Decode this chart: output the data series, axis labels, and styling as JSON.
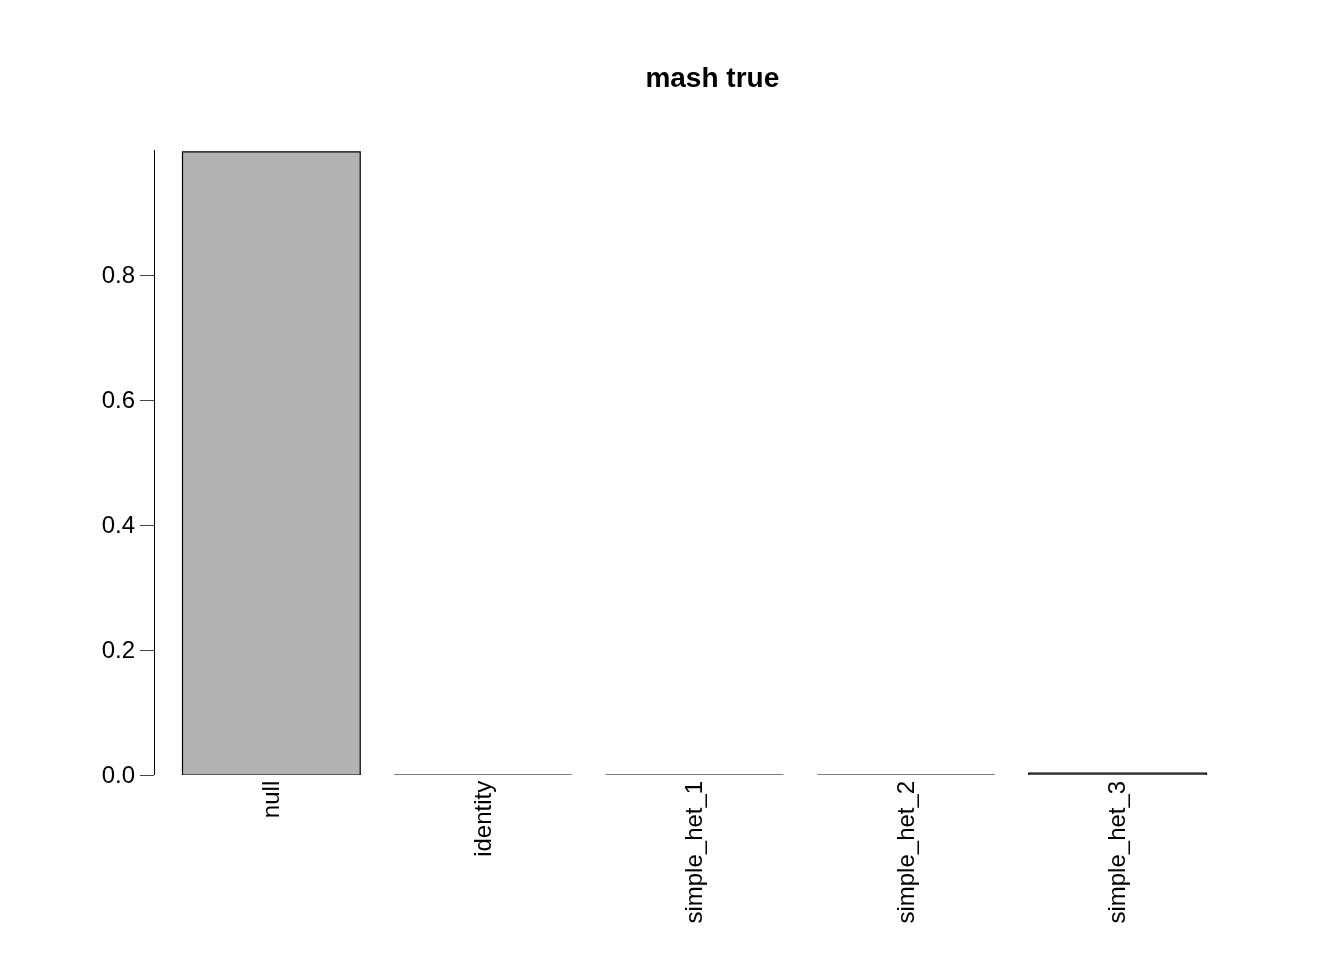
{
  "chart_data": {
    "type": "bar",
    "title": "mash true",
    "categories": [
      "null",
      "identity",
      "simple_het_1",
      "simple_het_2",
      "simple_het_3"
    ],
    "values": [
      0.997,
      0,
      0,
      0,
      0.003
    ],
    "color": "#b3b3b3",
    "ylim": [
      0,
      1.0
    ],
    "yticks": [
      {
        "value": 0,
        "label": "0.0"
      },
      0.2,
      0.4,
      0.6,
      0.8
    ],
    "grid": false
  }
}
